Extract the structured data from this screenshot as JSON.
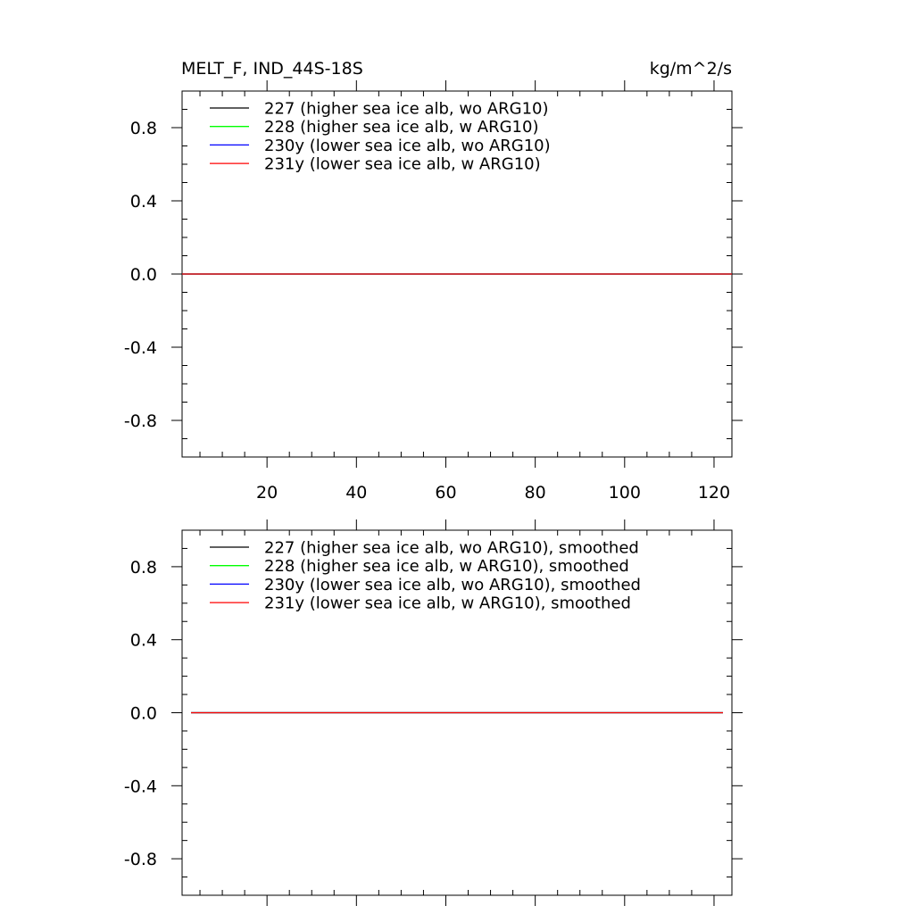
{
  "chart_data": [
    {
      "type": "line",
      "title": "MELT_F, IND_44S-18S",
      "units": "kg/m^2/s",
      "xlim": [
        1,
        124
      ],
      "ylim": [
        -1,
        1
      ],
      "xticks": [
        20,
        40,
        60,
        80,
        100,
        120
      ],
      "xtick_labels": [
        "20",
        "40",
        "60",
        "80",
        "100",
        "120"
      ],
      "yticks": [
        -0.8,
        -0.4,
        0.0,
        0.4,
        0.8
      ],
      "ytick_labels": [
        "-0.8",
        "-0.4",
        "0.0",
        "0.4",
        "0.8"
      ],
      "grid": false,
      "legend_position": "top-left",
      "x": [
        1,
        124
      ],
      "series": [
        {
          "name": "227 (higher sea ice alb, wo ARG10)",
          "color": "#000000",
          "values": [
            0,
            0
          ]
        },
        {
          "name": "228 (higher sea ice alb, w ARG10)",
          "color": "#00ff00",
          "values": [
            0,
            0
          ]
        },
        {
          "name": "230y (lower sea ice alb, wo ARG10)",
          "color": "#0000ff",
          "values": [
            0,
            0
          ]
        },
        {
          "name": "231y (lower sea ice alb, w ARG10)",
          "color": "#ff0000",
          "values": [
            0,
            0
          ]
        }
      ]
    },
    {
      "type": "line",
      "xlim": [
        1,
        124
      ],
      "ylim": [
        -1,
        1
      ],
      "xticks": [
        20,
        40,
        60,
        80,
        100,
        120
      ],
      "yticks": [
        -0.8,
        -0.4,
        0.0,
        0.4,
        0.8
      ],
      "ytick_labels": [
        "-0.8",
        "-0.4",
        "0.0",
        "0.4",
        "0.8"
      ],
      "grid": false,
      "legend_position": "top-left",
      "x": [
        3,
        122
      ],
      "series": [
        {
          "name": "227 (higher sea ice alb, wo ARG10), smoothed",
          "color": "#000000",
          "values": [
            0,
            0
          ]
        },
        {
          "name": "228 (higher sea ice alb, w ARG10), smoothed",
          "color": "#00ff00",
          "values": [
            0,
            0
          ]
        },
        {
          "name": "230y (lower sea ice alb, wo ARG10), smoothed",
          "color": "#0000ff",
          "values": [
            0,
            0
          ]
        },
        {
          "name": "231y (lower sea ice alb, w ARG10), smoothed",
          "color": "#ff0000",
          "values": [
            0,
            0
          ]
        }
      ]
    }
  ]
}
